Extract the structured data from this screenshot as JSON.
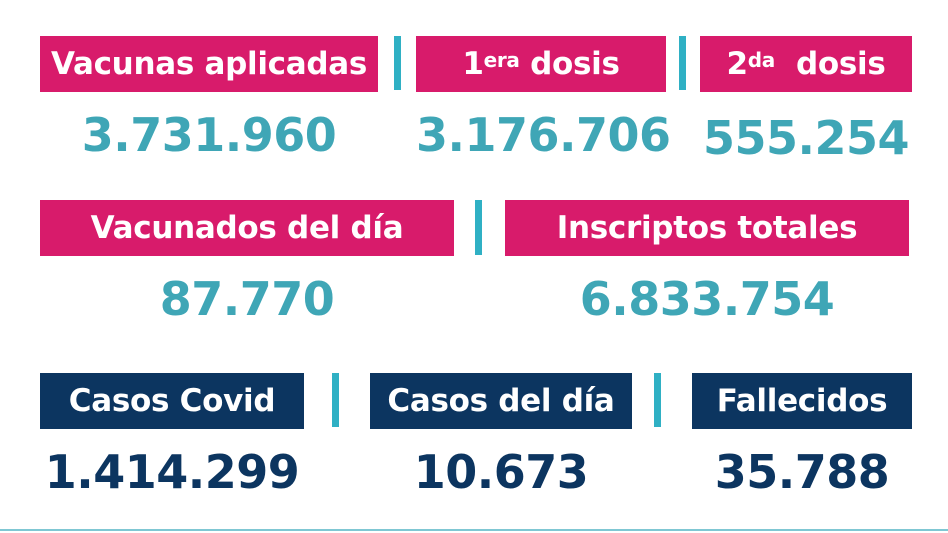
{
  "colors": {
    "pink": "#d81b6b",
    "navy": "#0c3560",
    "teal": "#3fa6b6",
    "separator": "#2fb0c4"
  },
  "row1": {
    "vacunas_aplicadas": {
      "label": "Vacunas aplicadas",
      "value": "3.731.960"
    },
    "primera_dosis": {
      "label_num": "1",
      "label_sup": "era",
      "label_text": " dosis",
      "value": "3.176.706"
    },
    "segunda_dosis": {
      "label_num": "2",
      "label_sup": "da",
      "label_text": "  dosis",
      "value": "555.254"
    }
  },
  "row2": {
    "vacunados_del_dia": {
      "label": "Vacunados del día",
      "value": "87.770"
    },
    "inscriptos_totales": {
      "label": "Inscriptos totales",
      "value": "6.833.754"
    }
  },
  "row3": {
    "casos_covid": {
      "label": "Casos Covid",
      "value": "1.414.299"
    },
    "casos_del_dia": {
      "label": "Casos del día",
      "value": "10.673"
    },
    "fallecidos": {
      "label": "Fallecidos",
      "value": "35.788"
    }
  }
}
